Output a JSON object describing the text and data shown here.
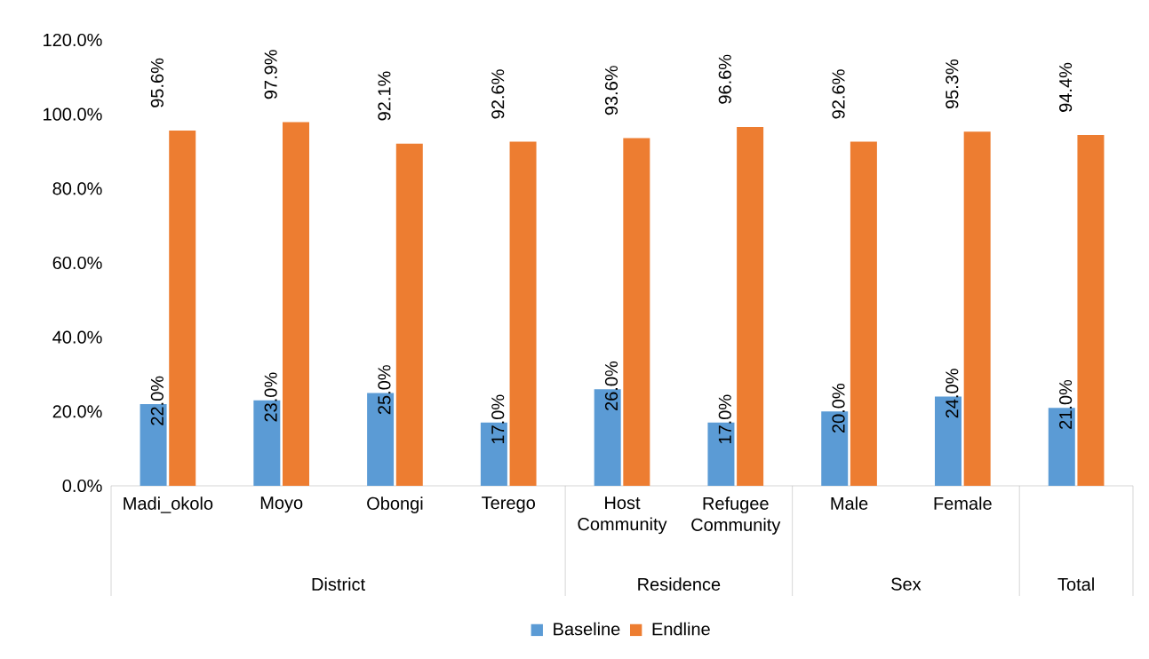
{
  "chart_data": {
    "type": "bar",
    "categories": [
      "Madi_okolo",
      "Moyo",
      "Obongi",
      "Terego",
      "Host Community",
      "Refugee Community",
      "Male",
      "Female",
      null
    ],
    "series": [
      {
        "name": "Baseline",
        "color": "#5b9bd5",
        "values": [
          22,
          23,
          25,
          17,
          26,
          17,
          20,
          24,
          21
        ],
        "value_labels": [
          "22.0%",
          "23.0%",
          "25.0%",
          "17.0%",
          "26.0%",
          "17.0%",
          "20.0%",
          "24.0%",
          "21.0%"
        ]
      },
      {
        "name": "Endline",
        "color": "#ed7d31",
        "values": [
          95.6,
          97.9,
          92.1,
          92.6,
          93.6,
          96.6,
          92.6,
          95.3,
          94.4
        ],
        "value_labels": [
          "95.6%",
          "97.9%",
          "92.1%",
          "92.6%",
          "93.6%",
          "96.6%",
          "92.6%",
          "95.3%",
          "94.4%"
        ]
      }
    ],
    "ylim": [
      0,
      120
    ],
    "yticks": [
      {
        "value": 0,
        "label": "0.0%"
      },
      {
        "value": 20,
        "label": "20.0%"
      },
      {
        "value": 40,
        "label": "40.0%"
      },
      {
        "value": 60,
        "label": "60.0%"
      },
      {
        "value": 80,
        "label": "80.0%"
      },
      {
        "value": 100,
        "label": "100.0%"
      },
      {
        "value": 120,
        "label": "120.0%"
      }
    ],
    "annotations": [
      "District",
      "Residence",
      "Sex",
      "Total"
    ],
    "grid": false,
    "legend": "bottom"
  }
}
